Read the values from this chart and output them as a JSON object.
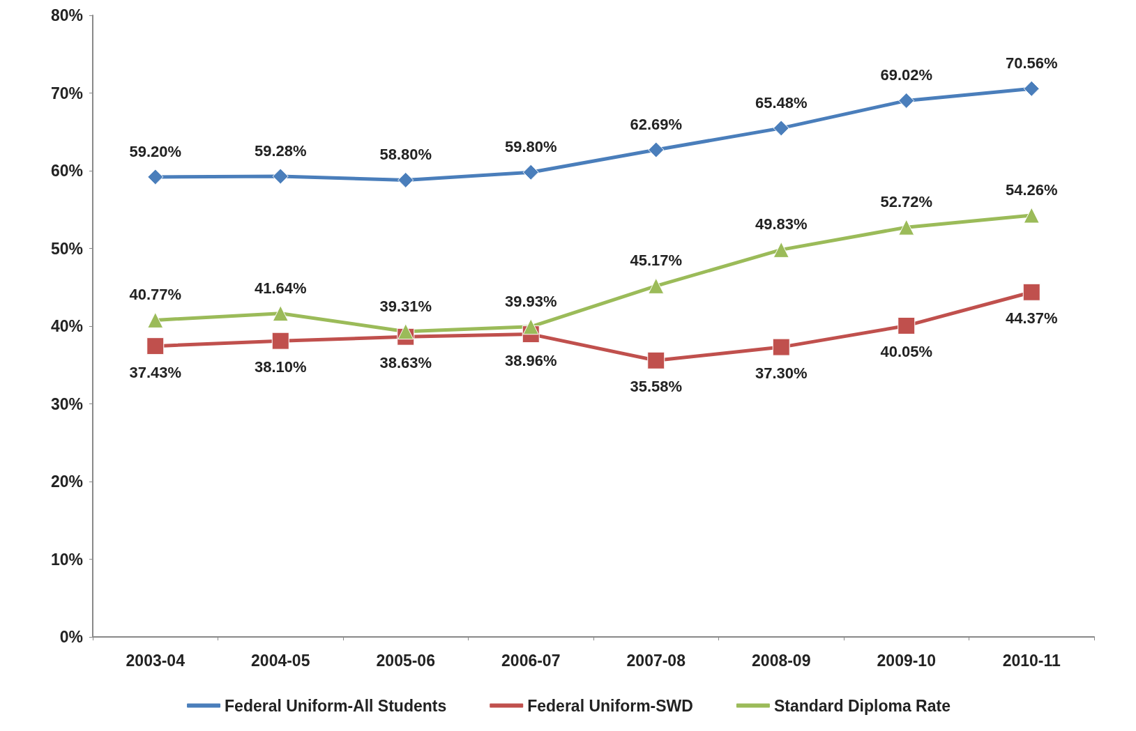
{
  "chart_data": {
    "type": "line",
    "categories": [
      "2003-04",
      "2004-05",
      "2005-06",
      "2006-07",
      "2007-08",
      "2008-09",
      "2009-10",
      "2010-11"
    ],
    "series": [
      {
        "name": "Federal Uniform-All Students",
        "color": "#4a7ebb",
        "marker": "diamond",
        "values": [
          59.2,
          59.28,
          58.8,
          59.8,
          62.69,
          65.48,
          69.02,
          70.56
        ],
        "value_labels": [
          "59.20%",
          "59.28%",
          "58.80%",
          "59.80%",
          "62.69%",
          "65.48%",
          "69.02%",
          "70.56%"
        ]
      },
      {
        "name": "Federal Uniform-SWD",
        "color": "#c0504d",
        "marker": "square",
        "values": [
          37.43,
          38.1,
          38.63,
          38.96,
          35.58,
          37.3,
          40.05,
          44.37
        ],
        "value_labels": [
          "37.43%",
          "38.10%",
          "38.63%",
          "38.96%",
          "35.58%",
          "37.30%",
          "40.05%",
          "44.37%"
        ]
      },
      {
        "name": "Standard Diploma Rate",
        "color": "#9bbb59",
        "marker": "triangle",
        "values": [
          40.77,
          41.64,
          39.31,
          39.93,
          45.17,
          49.83,
          52.72,
          54.26
        ],
        "value_labels": [
          "40.77%",
          "41.64%",
          "39.31%",
          "39.93%",
          "45.17%",
          "49.83%",
          "52.72%",
          "54.26%"
        ]
      }
    ],
    "ylim": [
      0,
      80
    ],
    "yticks": [
      {
        "value": 0,
        "label": "0%"
      },
      {
        "value": 10,
        "label": "10%"
      },
      {
        "value": 20,
        "label": "20%"
      },
      {
        "value": 30,
        "label": "30%"
      },
      {
        "value": 40,
        "label": "40%"
      },
      {
        "value": 50,
        "label": "50%"
      },
      {
        "value": 60,
        "label": "60%"
      },
      {
        "value": 70,
        "label": "70%"
      },
      {
        "value": 80,
        "label": "80%"
      }
    ],
    "grid": false,
    "legend": "bottom"
  }
}
